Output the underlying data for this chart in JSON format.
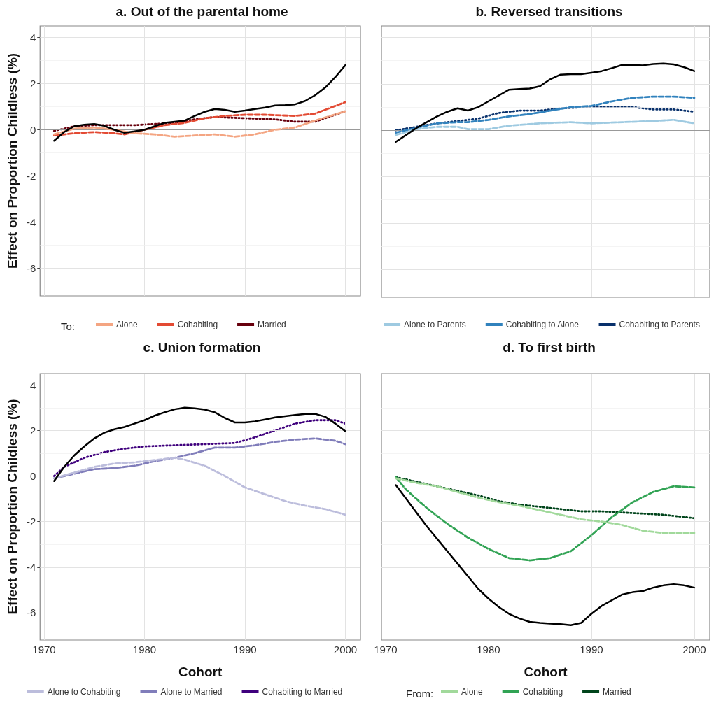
{
  "chart_data": [
    {
      "type": "line",
      "title": "a. Out of the parental home",
      "ylabel": "Effect on Proportion Childless (%)",
      "legend_title": "To:",
      "legend": "bottom",
      "grid": true,
      "tick_labels": "y",
      "marker": "none",
      "xlim": [
        1969.6,
        2001.5
      ],
      "xticks": [
        1970,
        1980,
        1990,
        2000
      ],
      "ylim": [
        -7.2,
        4.5
      ],
      "yticks": [
        -6,
        -4,
        -2,
        0,
        2,
        4
      ],
      "ref_lines": [
        {
          "axis": "y",
          "value": 0,
          "color": "#999999"
        }
      ],
      "series": [
        {
          "color": "#000000",
          "line_style": "solid",
          "x": [
            1971,
            1972,
            1973,
            1974,
            1975,
            1976,
            1977,
            1978,
            1979,
            1980,
            1981,
            1982,
            1983,
            1984,
            1985,
            1986,
            1987,
            1988,
            1989,
            1990,
            1991,
            1992,
            1993,
            1994,
            1995,
            1996,
            1997,
            1998,
            1999,
            2000
          ],
          "values": [
            -0.48,
            -0.1,
            0.15,
            0.22,
            0.25,
            0.17,
            0,
            -0.13,
            -0.07,
            0,
            0.15,
            0.3,
            0.35,
            0.4,
            0.6,
            0.78,
            0.9,
            0.86,
            0.78,
            0.83,
            0.9,
            0.96,
            1.05,
            1.07,
            1.1,
            1.25,
            1.5,
            1.83,
            2.28,
            2.8
          ]
        },
        {
          "name": "Alone",
          "color": "#f4a582",
          "line_style": "dashed",
          "x": [
            1971,
            1973,
            1975,
            1977,
            1979,
            1981,
            1983,
            1985,
            1987,
            1989,
            1991,
            1993,
            1995,
            1997,
            2000
          ],
          "values": [
            -0.2,
            0.05,
            0.1,
            0,
            -0.15,
            -0.2,
            -0.3,
            -0.25,
            -0.2,
            -0.3,
            -0.2,
            0,
            0.1,
            0.4,
            0.8
          ]
        },
        {
          "name": "Cohabiting",
          "color": "#e34a33",
          "line_style": "dashed",
          "x": [
            1971,
            1973,
            1975,
            1977,
            1978,
            1980,
            1982,
            1984,
            1986,
            1988,
            1990,
            1992,
            1995,
            1997,
            2000
          ],
          "values": [
            -0.25,
            -0.15,
            -0.1,
            -0.15,
            -0.2,
            0,
            0.2,
            0.3,
            0.5,
            0.6,
            0.65,
            0.65,
            0.6,
            0.7,
            1.2
          ]
        },
        {
          "name": "Married",
          "color": "#67000d",
          "line_style": "dotted",
          "x": [
            1971,
            1973,
            1975,
            1977,
            1979,
            1981,
            1983,
            1985,
            1987,
            1990,
            1993,
            1995,
            1997,
            2000
          ],
          "values": [
            -0.05,
            0.15,
            0.2,
            0.2,
            0.2,
            0.25,
            0.3,
            0.45,
            0.55,
            0.5,
            0.45,
            0.35,
            0.35,
            0.8
          ]
        }
      ]
    },
    {
      "type": "line",
      "title": "b. Reversed transitions",
      "legend": "bottom",
      "grid": true,
      "tick_labels": false,
      "marker": "none",
      "xlim": [
        1969.6,
        2001.5
      ],
      "xticks": [
        1970,
        1980,
        1990,
        2000
      ],
      "ylim": [
        -7.2,
        4.5
      ],
      "yticks": [
        -6,
        -4,
        -2,
        0,
        2,
        4
      ],
      "ref_lines": [
        {
          "axis": "y",
          "value": 0,
          "color": "#999999"
        }
      ],
      "series": [
        {
          "color": "#000000",
          "line_style": "solid",
          "x": [
            1971,
            1972,
            1973,
            1974,
            1975,
            1976,
            1977,
            1978,
            1979,
            1980,
            1981,
            1982,
            1983,
            1984,
            1985,
            1986,
            1987,
            1988,
            1989,
            1990,
            1991,
            1992,
            1993,
            1994,
            1995,
            1996,
            1997,
            1998,
            1999,
            2000
          ],
          "values": [
            -0.5,
            -0.2,
            0.1,
            0.35,
            0.6,
            0.8,
            0.95,
            0.85,
            1,
            1.25,
            1.5,
            1.75,
            1.78,
            1.8,
            1.9,
            2.2,
            2.4,
            2.42,
            2.42,
            2.48,
            2.55,
            2.68,
            2.82,
            2.82,
            2.8,
            2.86,
            2.88,
            2.84,
            2.72,
            2.55
          ]
        },
        {
          "name": "Alone to Parents",
          "color": "#9ecae1",
          "line_style": "dashed",
          "x": [
            1971,
            1973,
            1975,
            1977,
            1978,
            1980,
            1982,
            1985,
            1988,
            1990,
            1993,
            1996,
            1998,
            2000
          ],
          "values": [
            -0.2,
            0.05,
            0.15,
            0.15,
            0.05,
            0.05,
            0.2,
            0.3,
            0.35,
            0.3,
            0.35,
            0.4,
            0.45,
            0.3
          ]
        },
        {
          "name": "Cohabiting to Alone",
          "color": "#3182bd",
          "line_style": "dashed",
          "x": [
            1971,
            1973,
            1975,
            1977,
            1978,
            1980,
            1982,
            1984,
            1986,
            1988,
            1990,
            1992,
            1994,
            1996,
            1998,
            2000
          ],
          "values": [
            -0.1,
            0.1,
            0.3,
            0.35,
            0.35,
            0.45,
            0.6,
            0.7,
            0.85,
            1,
            1.05,
            1.25,
            1.4,
            1.45,
            1.45,
            1.4
          ]
        },
        {
          "name": "Cohabiting to Parents",
          "color": "#08306b",
          "line_style": "dotted",
          "x": [
            1971,
            1973,
            1975,
            1977,
            1979,
            1981,
            1983,
            1985,
            1987,
            1990,
            1992,
            1994,
            1996,
            1998,
            2000
          ],
          "values": [
            0,
            0.15,
            0.3,
            0.4,
            0.5,
            0.75,
            0.85,
            0.85,
            0.95,
            1,
            1,
            1,
            0.9,
            0.9,
            0.8
          ]
        }
      ]
    },
    {
      "type": "line",
      "title": "c. Union formation",
      "xlabel": "Cohort",
      "ylabel": "Effect on Proportion Childless (%)",
      "legend": "bottom",
      "grid": true,
      "marker": "none",
      "xlim": [
        1969.6,
        2001.5
      ],
      "xticks": [
        1970,
        1980,
        1990,
        2000
      ],
      "ylim": [
        -7.2,
        4.5
      ],
      "yticks": [
        -6,
        -4,
        -2,
        0,
        2,
        4
      ],
      "ref_lines": [
        {
          "axis": "y",
          "value": 0,
          "color": "#999999"
        }
      ],
      "series": [
        {
          "color": "#000000",
          "line_style": "solid",
          "x": [
            1971,
            1972,
            1973,
            1974,
            1975,
            1976,
            1977,
            1978,
            1979,
            1980,
            1981,
            1982,
            1983,
            1984,
            1985,
            1986,
            1987,
            1988,
            1989,
            1990,
            1991,
            1992,
            1993,
            1994,
            1995,
            1996,
            1997,
            1998,
            1999,
            2000
          ],
          "values": [
            -0.22,
            0.4,
            0.9,
            1.3,
            1.65,
            1.9,
            2.05,
            2.15,
            2.3,
            2.45,
            2.65,
            2.8,
            2.93,
            3,
            2.97,
            2.92,
            2.8,
            2.55,
            2.35,
            2.35,
            2.4,
            2.48,
            2.57,
            2.63,
            2.68,
            2.73,
            2.73,
            2.6,
            2.3,
            1.97
          ]
        },
        {
          "name": "Alone to Cohabiting",
          "color": "#bcbddc",
          "line_style": "dashed",
          "x": [
            1971,
            1973,
            1975,
            1977,
            1979,
            1981,
            1983,
            1984,
            1986,
            1988,
            1990,
            1992,
            1994,
            1996,
            1998,
            2000
          ],
          "values": [
            -0.1,
            0.15,
            0.4,
            0.55,
            0.6,
            0.7,
            0.8,
            0.72,
            0.45,
            0,
            -0.5,
            -0.8,
            -1.1,
            -1.3,
            -1.45,
            -1.7
          ]
        },
        {
          "name": "Alone to Married",
          "color": "#807dba",
          "line_style": "dashed",
          "x": [
            1971,
            1973,
            1975,
            1977,
            1979,
            1981,
            1983,
            1985,
            1987,
            1989,
            1991,
            1993,
            1995,
            1997,
            1999,
            2000
          ],
          "values": [
            -0.1,
            0.1,
            0.3,
            0.35,
            0.45,
            0.65,
            0.8,
            1,
            1.25,
            1.25,
            1.35,
            1.5,
            1.6,
            1.65,
            1.55,
            1.4
          ]
        },
        {
          "name": "Cohabiting to Married",
          "color": "#3f007d",
          "line_style": "dotted",
          "x": [
            1971,
            1972,
            1974,
            1976,
            1978,
            1980,
            1983,
            1986,
            1989,
            1991,
            1993,
            1995,
            1997,
            1999,
            2000
          ],
          "values": [
            0,
            0.4,
            0.8,
            1.05,
            1.2,
            1.3,
            1.35,
            1.4,
            1.45,
            1.7,
            2,
            2.3,
            2.45,
            2.45,
            2.3
          ]
        }
      ]
    },
    {
      "type": "line",
      "title": "d. To first birth",
      "xlabel": "Cohort",
      "legend_title": "From:",
      "legend": "bottom",
      "grid": true,
      "tick_labels": "x",
      "marker": "none",
      "xlim": [
        1969.6,
        2001.5
      ],
      "xticks": [
        1970,
        1980,
        1990,
        2000
      ],
      "ylim": [
        -7.2,
        4.5
      ],
      "yticks": [
        -6,
        -4,
        -2,
        0,
        2,
        4
      ],
      "ref_lines": [
        {
          "axis": "y",
          "value": 0,
          "color": "#999999"
        }
      ],
      "series": [
        {
          "color": "#000000",
          "line_style": "solid",
          "x": [
            1971,
            1972,
            1973,
            1974,
            1975,
            1976,
            1977,
            1978,
            1979,
            1980,
            1981,
            1982,
            1983,
            1984,
            1985,
            1986,
            1987,
            1988,
            1989,
            1990,
            1991,
            1992,
            1993,
            1994,
            1995,
            1996,
            1997,
            1998,
            1999,
            2000
          ],
          "values": [
            -0.4,
            -1,
            -1.6,
            -2.2,
            -2.75,
            -3.3,
            -3.85,
            -4.4,
            -4.95,
            -5.38,
            -5.75,
            -6.05,
            -6.25,
            -6.4,
            -6.45,
            -6.48,
            -6.5,
            -6.55,
            -6.45,
            -6.05,
            -5.7,
            -5.45,
            -5.2,
            -5.1,
            -5.05,
            -4.9,
            -4.8,
            -4.75,
            -4.8,
            -4.9
          ]
        },
        {
          "name": "Alone",
          "color": "#a1d99b",
          "line_style": "dashed",
          "x": [
            1971,
            1973,
            1975,
            1977,
            1979,
            1981,
            1983,
            1985,
            1987,
            1989,
            1991,
            1993,
            1995,
            1997,
            2000
          ],
          "values": [
            -0.1,
            -0.3,
            -0.45,
            -0.7,
            -0.95,
            -1.15,
            -1.3,
            -1.5,
            -1.7,
            -1.9,
            -2,
            -2.15,
            -2.4,
            -2.5,
            -2.5
          ]
        },
        {
          "name": "Cohabiting",
          "color": "#31a354",
          "line_style": "dashed",
          "x": [
            1971,
            1972,
            1974,
            1976,
            1978,
            1980,
            1982,
            1984,
            1986,
            1988,
            1990,
            1992,
            1994,
            1996,
            1998,
            2000
          ],
          "values": [
            -0.05,
            -0.6,
            -1.4,
            -2.1,
            -2.7,
            -3.2,
            -3.6,
            -3.7,
            -3.6,
            -3.3,
            -2.6,
            -1.8,
            -1.15,
            -0.7,
            -0.45,
            -0.5
          ]
        },
        {
          "name": "Married",
          "color": "#00441b",
          "line_style": "dotted",
          "x": [
            1971,
            1973,
            1975,
            1977,
            1979,
            1981,
            1983,
            1985,
            1987,
            1989,
            1991,
            1993,
            1995,
            1997,
            2000
          ],
          "values": [
            -0.05,
            -0.25,
            -0.45,
            -0.65,
            -0.85,
            -1.1,
            -1.25,
            -1.35,
            -1.45,
            -1.55,
            -1.55,
            -1.6,
            -1.65,
            -1.7,
            -1.85
          ]
        }
      ]
    }
  ]
}
